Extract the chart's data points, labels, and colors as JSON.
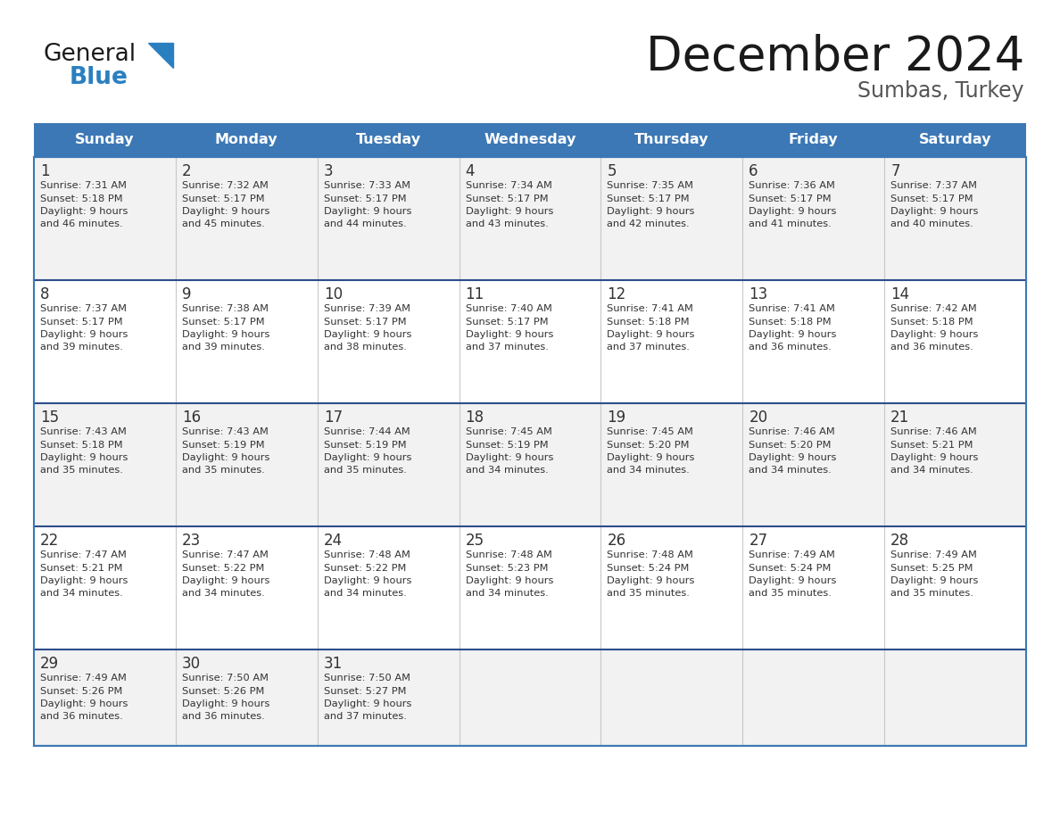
{
  "title": "December 2024",
  "subtitle": "Sumbas, Turkey",
  "days_of_week": [
    "Sunday",
    "Monday",
    "Tuesday",
    "Wednesday",
    "Thursday",
    "Friday",
    "Saturday"
  ],
  "header_bg_color": "#3c78b5",
  "header_text_color": "#ffffff",
  "cell_bg_color": "#f2f2f2",
  "cell_bg_white": "#ffffff",
  "row_line_color": "#2e4d8a",
  "outer_line_color": "#3c78b5",
  "text_color": "#333333",
  "title_color": "#1a1a1a",
  "subtitle_color": "#555555",
  "blue_color": "#2a7fc0",
  "logo_black": "#1a1a1a",
  "weeks": [
    [
      {
        "day": 1,
        "sunrise": "7:31 AM",
        "sunset": "5:18 PM",
        "daylight": "9 hours and 46 minutes."
      },
      {
        "day": 2,
        "sunrise": "7:32 AM",
        "sunset": "5:17 PM",
        "daylight": "9 hours and 45 minutes."
      },
      {
        "day": 3,
        "sunrise": "7:33 AM",
        "sunset": "5:17 PM",
        "daylight": "9 hours and 44 minutes."
      },
      {
        "day": 4,
        "sunrise": "7:34 AM",
        "sunset": "5:17 PM",
        "daylight": "9 hours and 43 minutes."
      },
      {
        "day": 5,
        "sunrise": "7:35 AM",
        "sunset": "5:17 PM",
        "daylight": "9 hours and 42 minutes."
      },
      {
        "day": 6,
        "sunrise": "7:36 AM",
        "sunset": "5:17 PM",
        "daylight": "9 hours and 41 minutes."
      },
      {
        "day": 7,
        "sunrise": "7:37 AM",
        "sunset": "5:17 PM",
        "daylight": "9 hours and 40 minutes."
      }
    ],
    [
      {
        "day": 8,
        "sunrise": "7:37 AM",
        "sunset": "5:17 PM",
        "daylight": "9 hours and 39 minutes."
      },
      {
        "day": 9,
        "sunrise": "7:38 AM",
        "sunset": "5:17 PM",
        "daylight": "9 hours and 39 minutes."
      },
      {
        "day": 10,
        "sunrise": "7:39 AM",
        "sunset": "5:17 PM",
        "daylight": "9 hours and 38 minutes."
      },
      {
        "day": 11,
        "sunrise": "7:40 AM",
        "sunset": "5:17 PM",
        "daylight": "9 hours and 37 minutes."
      },
      {
        "day": 12,
        "sunrise": "7:41 AM",
        "sunset": "5:18 PM",
        "daylight": "9 hours and 37 minutes."
      },
      {
        "day": 13,
        "sunrise": "7:41 AM",
        "sunset": "5:18 PM",
        "daylight": "9 hours and 36 minutes."
      },
      {
        "day": 14,
        "sunrise": "7:42 AM",
        "sunset": "5:18 PM",
        "daylight": "9 hours and 36 minutes."
      }
    ],
    [
      {
        "day": 15,
        "sunrise": "7:43 AM",
        "sunset": "5:18 PM",
        "daylight": "9 hours and 35 minutes."
      },
      {
        "day": 16,
        "sunrise": "7:43 AM",
        "sunset": "5:19 PM",
        "daylight": "9 hours and 35 minutes."
      },
      {
        "day": 17,
        "sunrise": "7:44 AM",
        "sunset": "5:19 PM",
        "daylight": "9 hours and 35 minutes."
      },
      {
        "day": 18,
        "sunrise": "7:45 AM",
        "sunset": "5:19 PM",
        "daylight": "9 hours and 34 minutes."
      },
      {
        "day": 19,
        "sunrise": "7:45 AM",
        "sunset": "5:20 PM",
        "daylight": "9 hours and 34 minutes."
      },
      {
        "day": 20,
        "sunrise": "7:46 AM",
        "sunset": "5:20 PM",
        "daylight": "9 hours and 34 minutes."
      },
      {
        "day": 21,
        "sunrise": "7:46 AM",
        "sunset": "5:21 PM",
        "daylight": "9 hours and 34 minutes."
      }
    ],
    [
      {
        "day": 22,
        "sunrise": "7:47 AM",
        "sunset": "5:21 PM",
        "daylight": "9 hours and 34 minutes."
      },
      {
        "day": 23,
        "sunrise": "7:47 AM",
        "sunset": "5:22 PM",
        "daylight": "9 hours and 34 minutes."
      },
      {
        "day": 24,
        "sunrise": "7:48 AM",
        "sunset": "5:22 PM",
        "daylight": "9 hours and 34 minutes."
      },
      {
        "day": 25,
        "sunrise": "7:48 AM",
        "sunset": "5:23 PM",
        "daylight": "9 hours and 34 minutes."
      },
      {
        "day": 26,
        "sunrise": "7:48 AM",
        "sunset": "5:24 PM",
        "daylight": "9 hours and 35 minutes."
      },
      {
        "day": 27,
        "sunrise": "7:49 AM",
        "sunset": "5:24 PM",
        "daylight": "9 hours and 35 minutes."
      },
      {
        "day": 28,
        "sunrise": "7:49 AM",
        "sunset": "5:25 PM",
        "daylight": "9 hours and 35 minutes."
      }
    ],
    [
      {
        "day": 29,
        "sunrise": "7:49 AM",
        "sunset": "5:26 PM",
        "daylight": "9 hours and 36 minutes."
      },
      {
        "day": 30,
        "sunrise": "7:50 AM",
        "sunset": "5:26 PM",
        "daylight": "9 hours and 36 minutes."
      },
      {
        "day": 31,
        "sunrise": "7:50 AM",
        "sunset": "5:27 PM",
        "daylight": "9 hours and 37 minutes."
      },
      null,
      null,
      null,
      null
    ]
  ],
  "figsize": [
    11.88,
    9.18
  ],
  "dpi": 100
}
